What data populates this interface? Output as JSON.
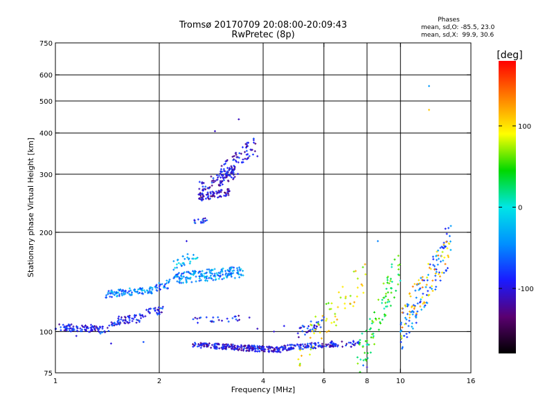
{
  "header": {
    "title_line1": "Tromsø 20170709 20:08:00-20:09:43",
    "title_line2": "RwPretec (8p)"
  },
  "stats": {
    "heading": "Phases",
    "line_o": "mean, sd,O: -85.5, 23.0",
    "line_x": "mean, sd,X:  99.9, 30.6"
  },
  "colorbar": {
    "label": "[deg]",
    "range": [
      -180,
      180
    ],
    "ticks": [
      {
        "value": 100,
        "label": "100"
      },
      {
        "value": 0,
        "label": "0"
      },
      {
        "value": -100,
        "label": "-100"
      }
    ],
    "stops": [
      "#000000",
      "#5a0070",
      "#1a1aff",
      "#0090ff",
      "#00e6e6",
      "#00d800",
      "#ffff00",
      "#ff8000",
      "#ff0000"
    ]
  },
  "chart_data": {
    "type": "scatter",
    "xlabel": "Frequency [MHz]",
    "ylabel": "Stationary phase Virtual Height [km]",
    "x_scale": "log",
    "y_scale": "log",
    "xlim": [
      1,
      16
    ],
    "ylim": [
      75,
      750
    ],
    "x_ticks": [
      {
        "value": 1,
        "label": "1"
      },
      {
        "value": 2,
        "label": "2"
      },
      {
        "value": 4,
        "label": "4"
      },
      {
        "value": 6,
        "label": "6"
      },
      {
        "value": 8,
        "label": "8"
      },
      {
        "value": 10,
        "label": "10"
      },
      {
        "value": 16,
        "label": "16"
      }
    ],
    "y_ticks": [
      {
        "value": 75,
        "label": "75"
      },
      {
        "value": 100,
        "label": "100"
      },
      {
        "value": 200,
        "label": "200"
      },
      {
        "value": 300,
        "label": "300"
      },
      {
        "value": 400,
        "label": "400"
      },
      {
        "value": 500,
        "label": "500"
      },
      {
        "value": 600,
        "label": "600"
      },
      {
        "value": 750,
        "label": "750"
      }
    ],
    "x_grid": [
      2,
      4,
      6,
      8,
      10
    ],
    "y_grid": [
      100,
      200,
      300,
      400,
      500,
      600
    ],
    "grid": true,
    "traces": [
      {
        "name": "e-layer-low",
        "x": [
          1.0,
          1.35
        ],
        "y": [
          103,
          102
        ],
        "phase": -95,
        "spread": 0.025,
        "count": 90
      },
      {
        "name": "e-layer-rise",
        "x": [
          1.35,
          1.52
        ],
        "y": [
          101,
          106
        ],
        "phase": -88,
        "spread": 0.03,
        "count": 25
      },
      {
        "name": "e-layer-upper",
        "x": [
          1.52,
          1.78
        ],
        "y": [
          108,
          110
        ],
        "phase": -92,
        "spread": 0.03,
        "count": 45
      },
      {
        "name": "e-layer-step",
        "x": [
          1.78,
          2.05
        ],
        "y": [
          113,
          117
        ],
        "phase": -85,
        "spread": 0.03,
        "count": 30
      },
      {
        "name": "es-trace-a",
        "x": [
          1.4,
          1.95
        ],
        "y": [
          130,
          134
        ],
        "phase": -50,
        "spread": 0.025,
        "count": 90
      },
      {
        "name": "es-trace-b",
        "x": [
          1.95,
          2.15
        ],
        "y": [
          135,
          140
        ],
        "phase": -60,
        "spread": 0.03,
        "count": 25
      },
      {
        "name": "f1-cluster",
        "x": [
          2.2,
          3.5
        ],
        "y": [
          145,
          152
        ],
        "phase": -45,
        "spread": 0.04,
        "count": 180
      },
      {
        "name": "f1-upper",
        "x": [
          2.2,
          2.6
        ],
        "y": [
          160,
          170
        ],
        "phase": -30,
        "spread": 0.04,
        "count": 30
      },
      {
        "name": "f-step",
        "x": [
          2.5,
          2.75
        ],
        "y": [
          215,
          218
        ],
        "phase": -80,
        "spread": 0.015,
        "count": 15
      },
      {
        "name": "f2-lower",
        "x": [
          2.6,
          3.2
        ],
        "y": [
          255,
          265
        ],
        "phase": -105,
        "spread": 0.025,
        "count": 70
      },
      {
        "name": "f2-mid",
        "x": [
          2.6,
          3.4
        ],
        "y": [
          270,
          310
        ],
        "phase": -100,
        "spread": 0.05,
        "count": 90
      },
      {
        "name": "f2-upper",
        "x": [
          3.0,
          3.8
        ],
        "y": [
          300,
          370
        ],
        "phase": -100,
        "spread": 0.06,
        "count": 70
      },
      {
        "name": "x-mid",
        "x": [
          2.5,
          3.7
        ],
        "y": [
          108,
          110
        ],
        "phase": -95,
        "spread": 0.02,
        "count": 25
      },
      {
        "name": "low-echo-a",
        "x": [
          2.5,
          4.5
        ],
        "y": [
          91,
          88
        ],
        "phase": -100,
        "spread": 0.02,
        "count": 230
      },
      {
        "name": "low-echo-b",
        "x": [
          4.5,
          6.6
        ],
        "y": [
          89,
          92
        ],
        "phase": -95,
        "spread": 0.02,
        "count": 110
      },
      {
        "name": "low-echo-c",
        "x": [
          6.2,
          7.6
        ],
        "y": [
          91,
          92
        ],
        "phase": -95,
        "spread": 0.02,
        "count": 30
      },
      {
        "name": "mid-rise",
        "x": [
          5.0,
          6.0
        ],
        "y": [
          98,
          108
        ],
        "phase": -90,
        "spread": 0.04,
        "count": 35
      },
      {
        "name": "scatter-a",
        "x": [
          5.0,
          8.0
        ],
        "y": [
          85,
          150
        ],
        "phase": 90,
        "spread": 0.12,
        "count": 60
      },
      {
        "name": "scatter-b",
        "x": [
          7.5,
          10.0
        ],
        "y": [
          80,
          160
        ],
        "phase": 40,
        "spread": 0.14,
        "count": 90
      },
      {
        "name": "scatter-c",
        "x": [
          10.0,
          14.0
        ],
        "y": [
          100,
          185
        ],
        "phase": -60,
        "spread": 0.14,
        "count": 110
      },
      {
        "name": "scatter-d",
        "x": [
          10.0,
          14.0
        ],
        "y": [
          105,
          185
        ],
        "phase": 110,
        "spread": 0.13,
        "count": 60
      }
    ],
    "points": [
      {
        "x": 12.1,
        "y": 555,
        "phase": -40
      },
      {
        "x": 12.1,
        "y": 470,
        "phase": 110
      },
      {
        "x": 3.4,
        "y": 440,
        "phase": -110
      },
      {
        "x": 2.9,
        "y": 405,
        "phase": -110
      },
      {
        "x": 3.85,
        "y": 340,
        "phase": -100
      },
      {
        "x": 13.5,
        "y": 205,
        "phase": -95
      },
      {
        "x": 2.4,
        "y": 188,
        "phase": -100
      },
      {
        "x": 8.6,
        "y": 188,
        "phase": -50
      },
      {
        "x": 1.15,
        "y": 97,
        "phase": -100
      },
      {
        "x": 1.45,
        "y": 92,
        "phase": -100
      },
      {
        "x": 1.8,
        "y": 93,
        "phase": -70
      },
      {
        "x": 3.85,
        "y": 102,
        "phase": -110
      },
      {
        "x": 4.3,
        "y": 100,
        "phase": -105
      },
      {
        "x": 4.6,
        "y": 104,
        "phase": -95
      },
      {
        "x": 7.8,
        "y": 79,
        "phase": -60
      },
      {
        "x": 8.0,
        "y": 78,
        "phase": -110
      }
    ]
  }
}
